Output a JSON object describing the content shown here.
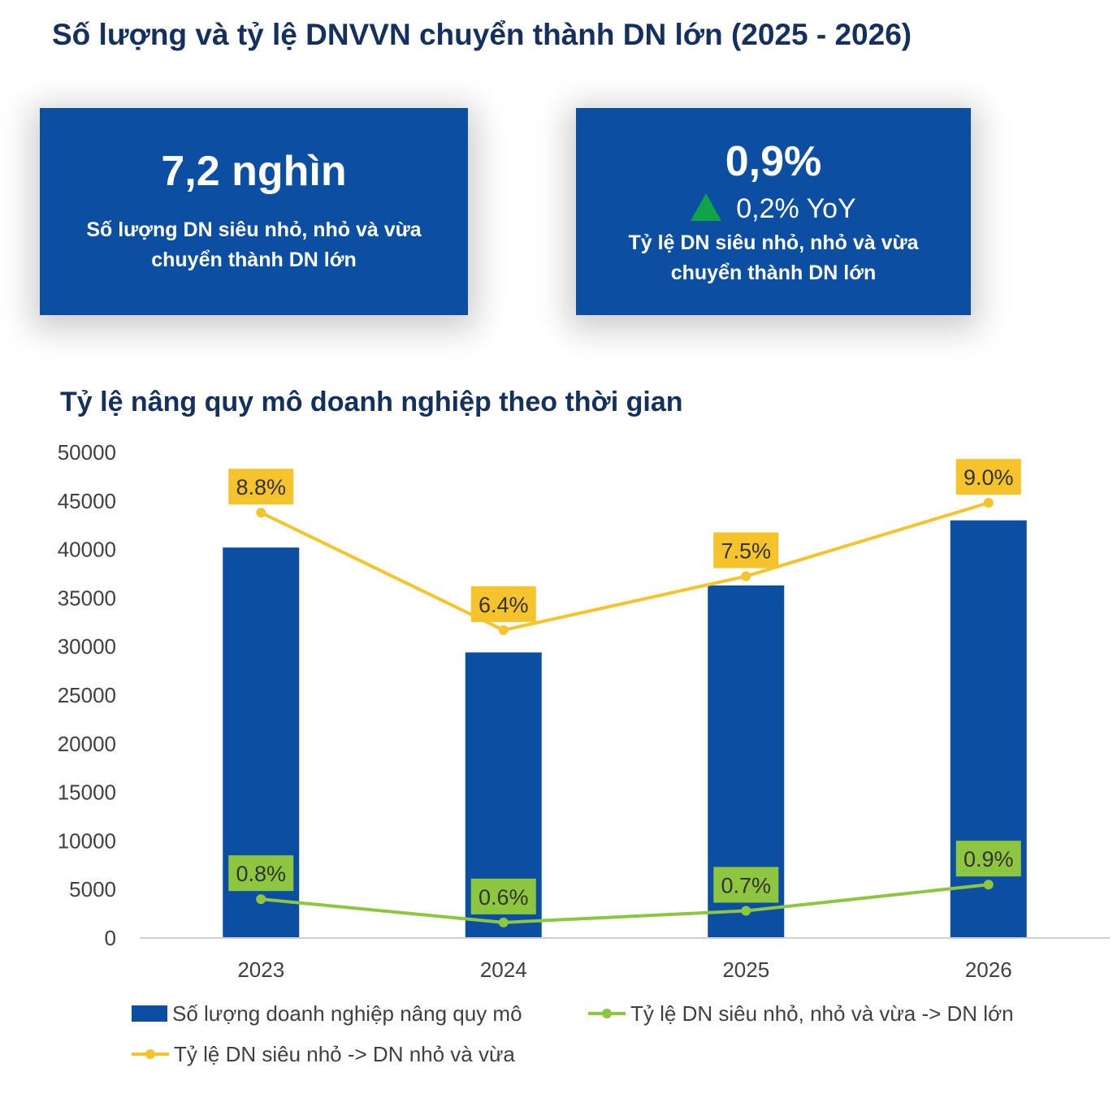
{
  "page": {
    "title": "Số lượng và tỷ lệ DNVVN chuyển thành DN lớn (2025 - 2026)"
  },
  "kpis": [
    {
      "value": "7,2 nghìn",
      "label": "Số lượng DN siêu nhỏ, nhỏ và vừa chuyển thành DN lớn"
    },
    {
      "value": "0,9%",
      "change": "0,2% YoY",
      "change_icon": "up-triangle-icon",
      "label": "Tỷ lệ DN siêu nhỏ, nhỏ và vừa chuyển thành DN lớn"
    }
  ],
  "colors": {
    "bar": "#0b4ea2",
    "line_yellow": "#f5c32c",
    "line_green": "#8dc63f",
    "kpi_bg": "#0b4ea2",
    "title": "#14305f",
    "up": "#12a24a"
  },
  "chart_data": {
    "type": "bar",
    "title": "Tỷ lệ nâng quy mô doanh nghiệp theo thời gian",
    "categories": [
      "2023",
      "2024",
      "2025",
      "2026"
    ],
    "ylim": [
      0,
      50000
    ],
    "yticks": [
      0,
      5000,
      10000,
      15000,
      20000,
      25000,
      30000,
      35000,
      40000,
      45000,
      50000
    ],
    "grid": false,
    "legend_position": "bottom",
    "series": [
      {
        "name": "Số lượng doanh nghiệp nâng quy mô",
        "type": "bar",
        "values": [
          40200,
          29400,
          36300,
          43000
        ]
      },
      {
        "name": "Tỷ lệ DN siêu nhỏ, nhỏ và vừa -> DN lớn",
        "type": "line",
        "values": [
          0.8,
          0.6,
          0.7,
          0.9
        ],
        "labels": [
          "0.8%",
          "0.6%",
          "0.7%",
          "0.9%"
        ]
      },
      {
        "name": "Tỷ lệ DN siêu nhỏ -> DN nhỏ và vừa",
        "type": "line",
        "values": [
          8.8,
          6.4,
          7.5,
          9.0
        ],
        "labels": [
          "8.8%",
          "6.4%",
          "7.5%",
          "9.0%"
        ]
      }
    ]
  }
}
